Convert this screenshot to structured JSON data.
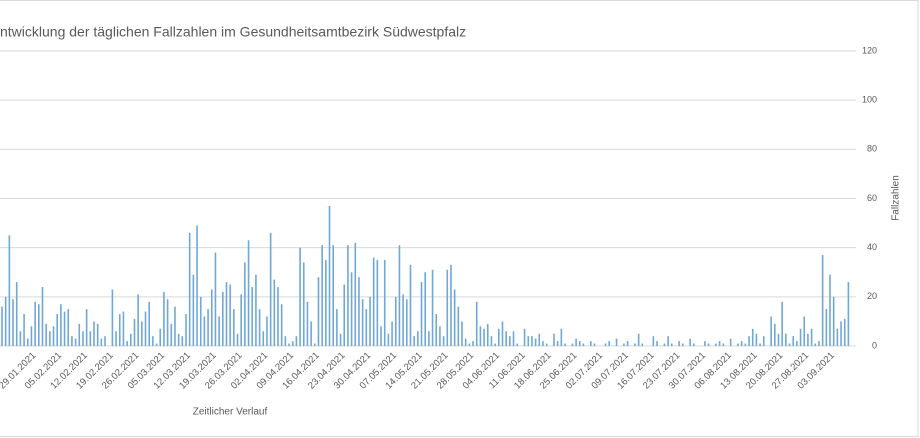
{
  "chart_data": {
    "type": "bar",
    "title": "ntwicklung der täglichen Fallzahlen im Gesundheitsamtbezirk Südwestpfalz",
    "x_label": "Zeitlicher Verlauf",
    "y_label": "Fallzahlen",
    "color": "#6fa8d6",
    "ylim": [
      0,
      120
    ],
    "yticks": [
      0,
      20,
      40,
      60,
      80,
      100,
      120
    ],
    "grid": true,
    "categories": [
      null,
      null,
      null,
      null,
      null,
      null,
      null,
      null,
      "29.01.2021",
      null,
      null,
      null,
      null,
      null,
      null,
      "05.02.2021",
      null,
      null,
      null,
      null,
      null,
      null,
      "12.02.2021",
      null,
      null,
      null,
      null,
      null,
      null,
      "19.02.2021",
      null,
      null,
      null,
      null,
      null,
      null,
      "26.02.2021",
      null,
      null,
      null,
      null,
      null,
      null,
      "05.03.2021",
      null,
      null,
      null,
      null,
      null,
      null,
      "12.03.2021",
      null,
      null,
      null,
      null,
      null,
      null,
      "19.03.2021",
      null,
      null,
      null,
      null,
      null,
      null,
      "26.03.2021",
      null,
      null,
      null,
      null,
      null,
      null,
      "02.04.2021",
      null,
      null,
      null,
      null,
      null,
      null,
      "09.04.2021",
      null,
      null,
      null,
      null,
      null,
      null,
      "16.04.2021",
      null,
      null,
      null,
      null,
      null,
      null,
      "23.04.2021",
      null,
      null,
      null,
      null,
      null,
      null,
      "30.04.2021",
      null,
      null,
      null,
      null,
      null,
      null,
      "07.05.2021",
      null,
      null,
      null,
      null,
      null,
      null,
      "14.05.2021",
      null,
      null,
      null,
      null,
      null,
      null,
      "21.05.2021",
      null,
      null,
      null,
      null,
      null,
      null,
      "28.05.2021",
      null,
      null,
      null,
      null,
      null,
      null,
      "04.06.2021",
      null,
      null,
      null,
      null,
      null,
      null,
      "11.06.2021",
      null,
      null,
      null,
      null,
      null,
      null,
      "18.06.2021",
      null,
      null,
      null,
      null,
      null,
      null,
      "25.06.2021",
      null,
      null,
      null,
      null,
      null,
      null,
      "02.07.2021",
      null,
      null,
      null,
      null,
      null,
      null,
      "09.07.2021",
      null,
      null,
      null,
      null,
      null,
      null,
      "16.07.2021",
      null,
      null,
      null,
      null,
      null,
      null,
      "23.07.2021",
      null,
      null,
      null,
      null,
      null,
      null,
      "30.07.2021",
      null,
      null,
      null,
      null,
      null,
      null,
      "06.08.2021",
      null,
      null,
      null,
      null,
      null,
      null,
      "13.08.2021",
      null,
      null,
      null,
      null,
      null,
      null,
      "20.08.2021",
      null,
      null,
      null,
      null,
      null,
      null,
      "27.08.2021",
      null,
      null,
      null,
      null,
      null,
      null,
      "03.09.2021",
      null,
      null,
      null,
      null,
      null
    ],
    "values": [
      16,
      20,
      45,
      19,
      26,
      6,
      13,
      3,
      8,
      18,
      17,
      24,
      9,
      6,
      8,
      13,
      17,
      14,
      15,
      4,
      3,
      9,
      6,
      15,
      6,
      10,
      9,
      3,
      4,
      0,
      23,
      6,
      13,
      14,
      2,
      5,
      11,
      21,
      10,
      14,
      18,
      4,
      1,
      7,
      22,
      19,
      9,
      16,
      5,
      4,
      13,
      46,
      29,
      49,
      20,
      12,
      15,
      23,
      38,
      12,
      22,
      26,
      25,
      15,
      5,
      21,
      34,
      43,
      24,
      29,
      15,
      6,
      12,
      46,
      27,
      24,
      17,
      4,
      1,
      2,
      4,
      40,
      34,
      18,
      10,
      1,
      28,
      41,
      35,
      57,
      41,
      15,
      5,
      25,
      41,
      30,
      42,
      28,
      19,
      15,
      20,
      36,
      35,
      8,
      35,
      5,
      10,
      20,
      41,
      21,
      19,
      33,
      4,
      6,
      26,
      30,
      6,
      31,
      13,
      8,
      4,
      31,
      33,
      23,
      16,
      10,
      3,
      1,
      2,
      18,
      8,
      7,
      9,
      4,
      1,
      7,
      10,
      6,
      4,
      6,
      1,
      0,
      7,
      4,
      4,
      3,
      5,
      2,
      1,
      0,
      5,
      2,
      7,
      1,
      0,
      1,
      3,
      2,
      1,
      0,
      2,
      1,
      0,
      0,
      1,
      2,
      0,
      3,
      0,
      1,
      2,
      0,
      1,
      5,
      1,
      0,
      0,
      4,
      2,
      0,
      1,
      4,
      1,
      0,
      2,
      1,
      0,
      3,
      1,
      0,
      0,
      2,
      1,
      0,
      1,
      2,
      1,
      0,
      3,
      0,
      1,
      2,
      1,
      4,
      7,
      5,
      1,
      4,
      0,
      12,
      9,
      5,
      18,
      5,
      1,
      4,
      2,
      7,
      12,
      5,
      7,
      1,
      2,
      37,
      15,
      29,
      20,
      7,
      10,
      11,
      26
    ]
  }
}
